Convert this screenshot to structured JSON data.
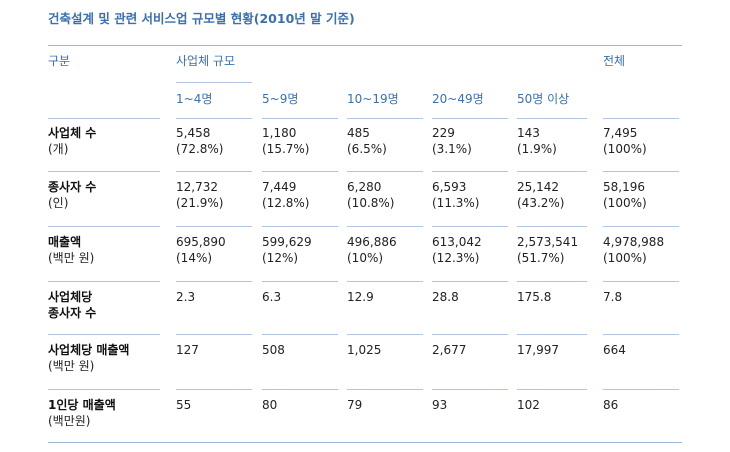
{
  "title": "건축설계 및 관련 서비스업 규모별 현황(2010년 말 기준)",
  "header": {
    "category": "구분",
    "group": "사업체 규모",
    "total": "전체",
    "sizes": [
      "1~4명",
      "5~9명",
      "10~19명",
      "20~49명",
      "50명 이상"
    ]
  },
  "rows": [
    {
      "label": [
        "사업체 수",
        "(개)"
      ],
      "values": [
        [
          "5,458",
          "(72.8%)"
        ],
        [
          "1,180",
          "(15.7%)"
        ],
        [
          "485",
          "(6.5%)"
        ],
        [
          "229",
          "(3.1%)"
        ],
        [
          "143",
          "(1.9%)"
        ],
        [
          "7,495",
          "(100%)"
        ]
      ]
    },
    {
      "label": [
        "종사자 수",
        "(인)"
      ],
      "values": [
        [
          "12,732",
          "(21.9%)"
        ],
        [
          "7,449",
          "(12.8%)"
        ],
        [
          "6,280",
          "(10.8%)"
        ],
        [
          "6,593",
          "(11.3%)"
        ],
        [
          "25,142",
          "(43.2%)"
        ],
        [
          "58,196",
          "(100%)"
        ]
      ]
    },
    {
      "label": [
        "매출액",
        "(백만 원)"
      ],
      "values": [
        [
          "695,890",
          "(14%)"
        ],
        [
          "599,629",
          "(12%)"
        ],
        [
          "496,886",
          "(10%)"
        ],
        [
          "613,042",
          "(12.3%)"
        ],
        [
          "2,573,541",
          "(51.7%)"
        ],
        [
          "4,978,988",
          "(100%)"
        ]
      ]
    },
    {
      "label": [
        "사업체당",
        "종사자 수"
      ],
      "values": [
        [
          "2.3"
        ],
        [
          "6.3"
        ],
        [
          "12.9"
        ],
        [
          "28.8"
        ],
        [
          "175.8"
        ],
        [
          "7.8"
        ]
      ]
    },
    {
      "label": [
        "사업체당 매출액",
        "(백만 원)"
      ],
      "values": [
        [
          "127"
        ],
        [
          "508"
        ],
        [
          "1,025"
        ],
        [
          "2,677"
        ],
        [
          "17,997"
        ],
        [
          "664"
        ]
      ]
    },
    {
      "label": [
        "1인당 매출액",
        "(백만원)"
      ],
      "values": [
        [
          "55"
        ],
        [
          "80"
        ],
        [
          "79"
        ],
        [
          "93"
        ],
        [
          "102"
        ],
        [
          "86"
        ]
      ]
    }
  ]
}
